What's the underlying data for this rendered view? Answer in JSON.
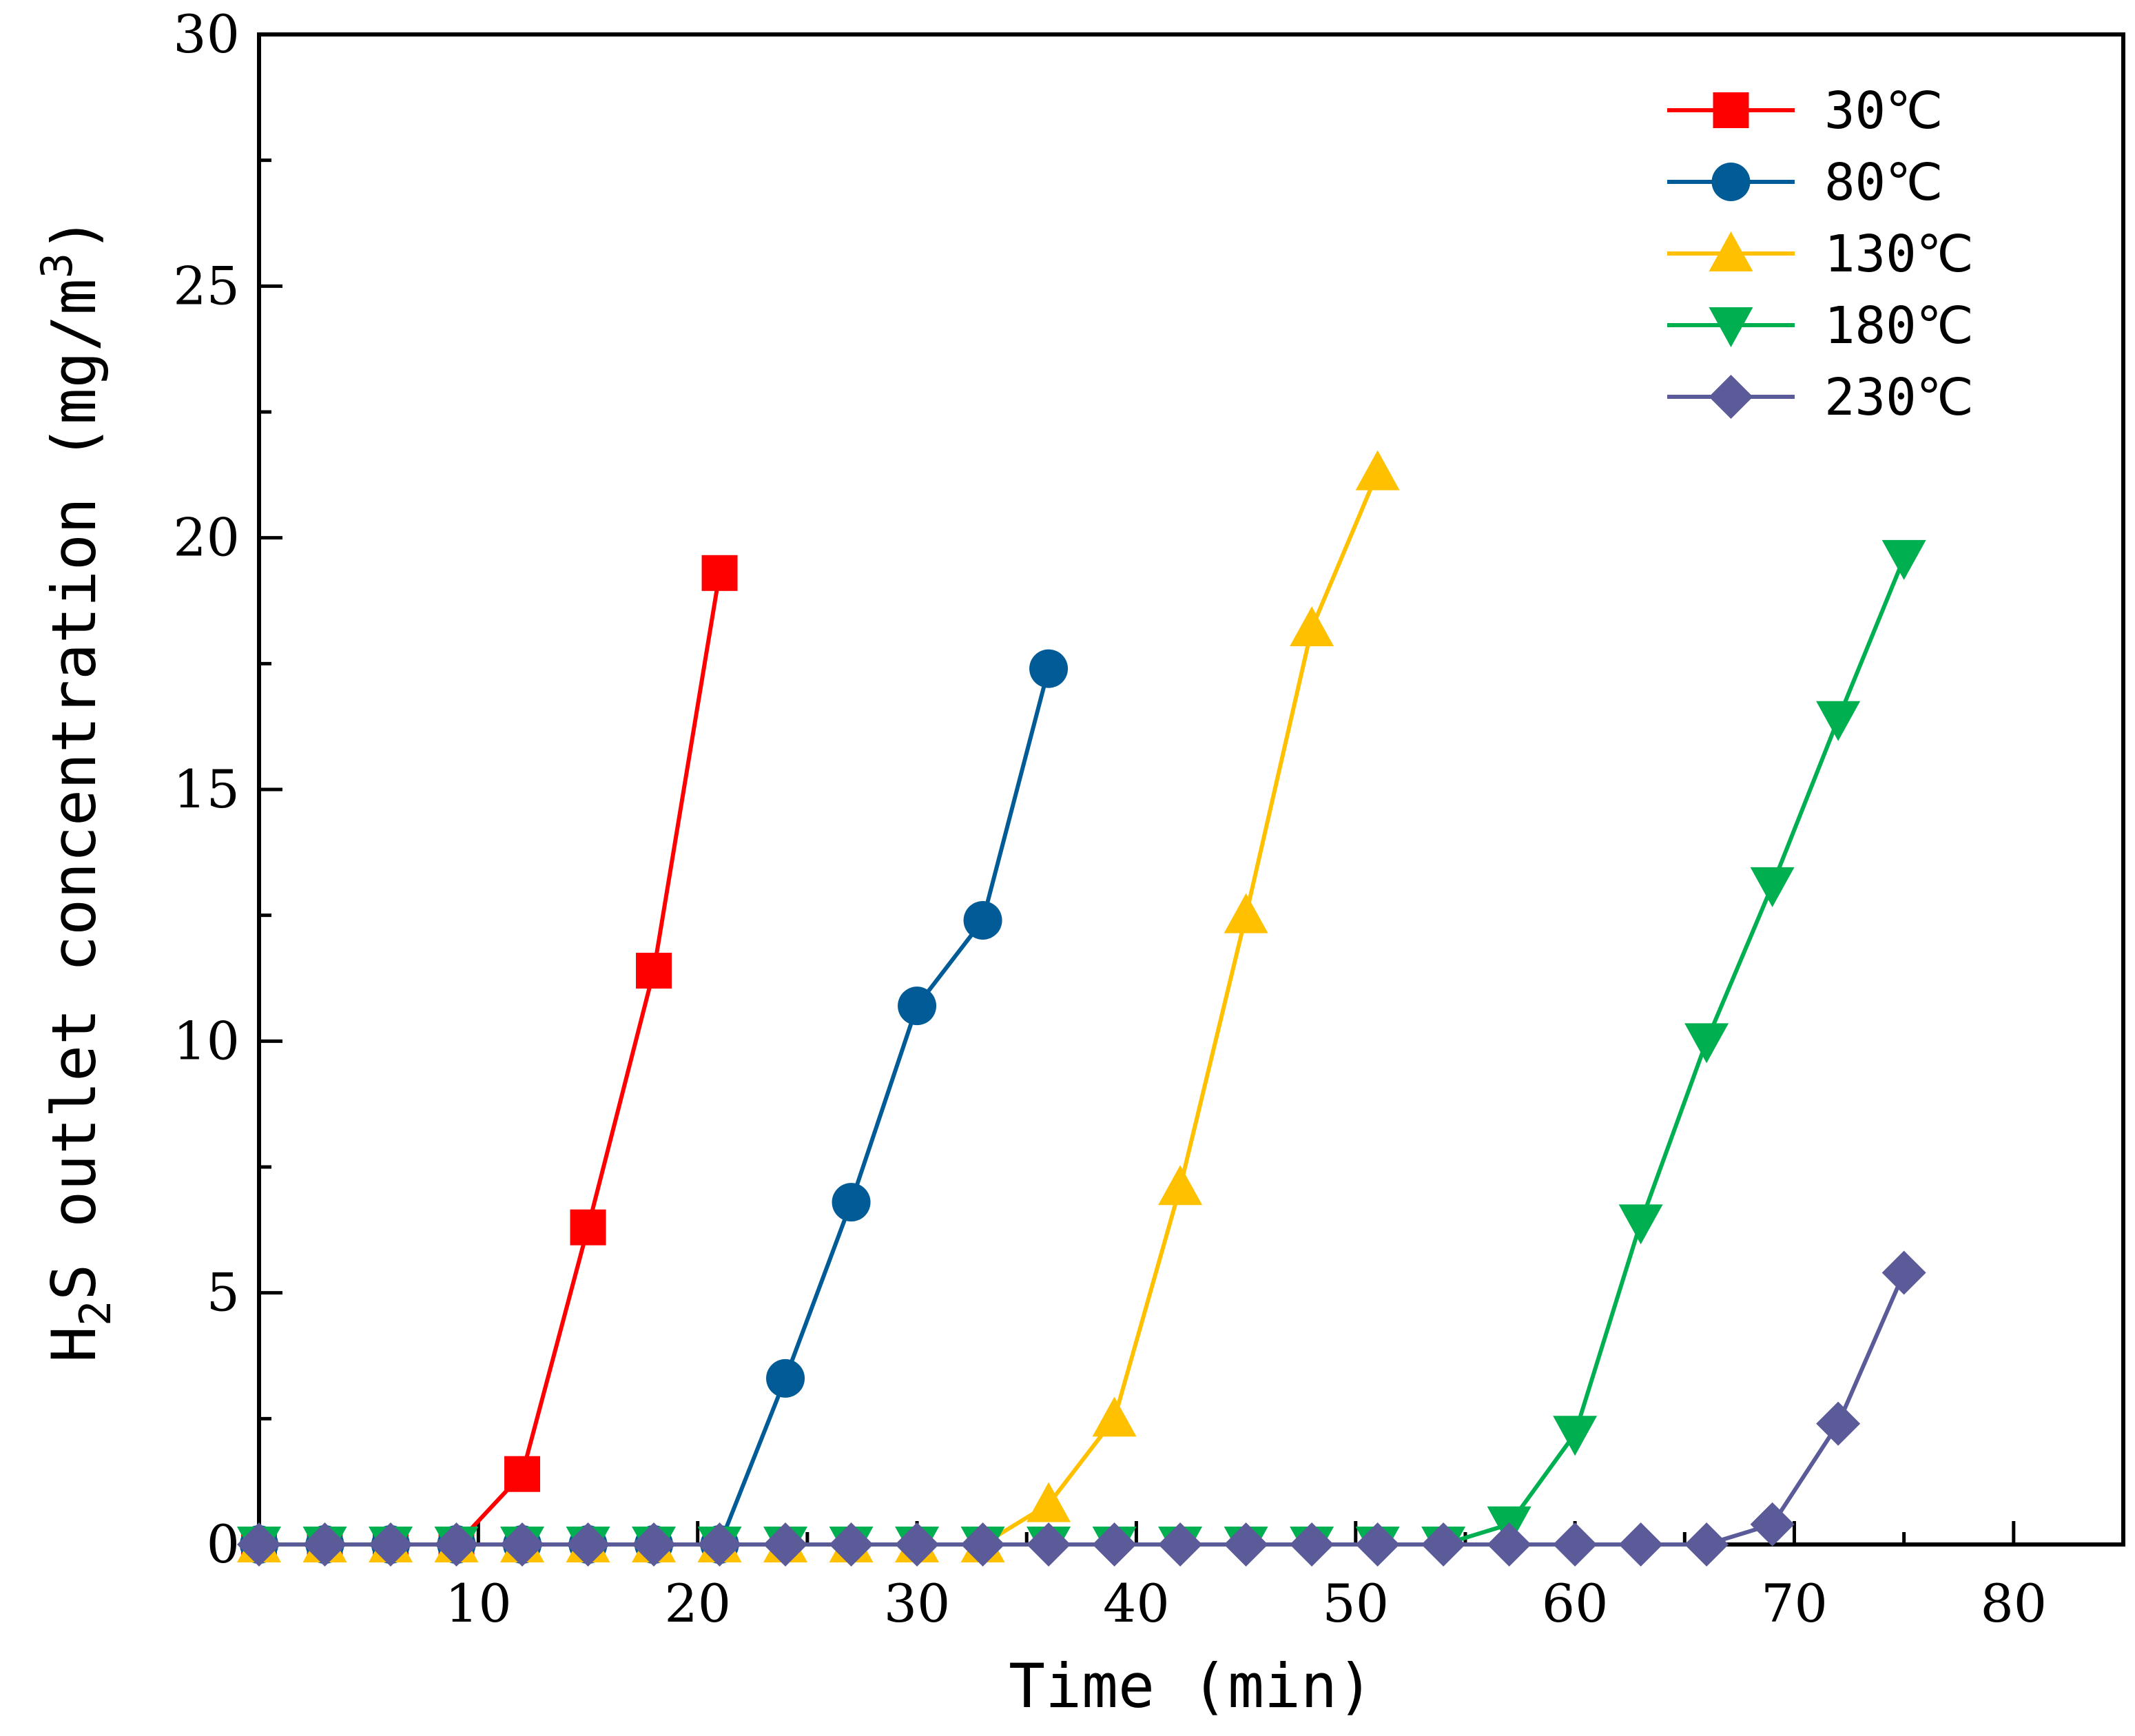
{
  "chart_data": {
    "type": "line",
    "title": "",
    "xlabel": "Time (min)",
    "ylabel": {
      "main": "H",
      "sub": "2",
      "rest": "S outlet concentration (mg/m",
      "sup": "3",
      "close": ")"
    },
    "xlim": [
      0,
      85
    ],
    "ylim": [
      0,
      30
    ],
    "x_ticks": [
      "10",
      "20",
      "30",
      "40",
      "50",
      "60",
      "70",
      "80"
    ],
    "y_ticks": [
      "0",
      "5",
      "10",
      "15",
      "20",
      "25",
      "30"
    ],
    "legend_position": "top-right",
    "series": [
      {
        "name": "30℃",
        "color": "#ff0000",
        "marker": "square",
        "x": [
          0,
          3,
          6,
          9,
          12,
          15,
          18,
          21
        ],
        "values": [
          0,
          0,
          0,
          0,
          1.4,
          6.3,
          11.4,
          19.3
        ]
      },
      {
        "name": "80℃",
        "color": "#005b96",
        "marker": "circle",
        "x": [
          0,
          3,
          6,
          9,
          12,
          15,
          18,
          21,
          24,
          27,
          30,
          33,
          36
        ],
        "values": [
          0,
          0,
          0,
          0,
          0,
          0,
          0,
          0,
          3.3,
          6.8,
          10.7,
          12.4,
          17.4
        ]
      },
      {
        "name": "130℃",
        "color": "#ffc000",
        "marker": "triangle-up",
        "x": [
          0,
          3,
          6,
          9,
          12,
          15,
          18,
          21,
          24,
          27,
          30,
          33,
          36,
          39,
          42,
          45,
          48,
          51
        ],
        "values": [
          0,
          0,
          0,
          0,
          0,
          0,
          0,
          0,
          0,
          0,
          0,
          0,
          0.8,
          2.5,
          7.1,
          12.5,
          18.2,
          21.3
        ]
      },
      {
        "name": "180℃",
        "color": "#00b050",
        "marker": "triangle-down",
        "x": [
          0,
          3,
          6,
          9,
          12,
          15,
          18,
          21,
          24,
          27,
          30,
          33,
          36,
          39,
          42,
          45,
          48,
          51,
          54,
          57,
          60,
          63,
          66,
          69,
          72,
          75
        ],
        "values": [
          0,
          0,
          0,
          0,
          0,
          0,
          0,
          0,
          0,
          0,
          0,
          0,
          0,
          0,
          0,
          0,
          0,
          0,
          0,
          0.4,
          2.2,
          6.4,
          10.0,
          13.1,
          16.4,
          19.6
        ]
      },
      {
        "name": "230℃",
        "color": "#5b5b9a",
        "marker": "diamond",
        "x": [
          0,
          3,
          6,
          9,
          12,
          15,
          18,
          21,
          24,
          27,
          30,
          33,
          36,
          39,
          42,
          45,
          48,
          51,
          54,
          57,
          60,
          63,
          66,
          69,
          72,
          75
        ],
        "values": [
          0,
          0,
          0,
          0,
          0,
          0,
          0,
          0,
          0,
          0,
          0,
          0,
          0,
          0,
          0,
          0,
          0,
          0,
          0,
          0,
          0,
          0,
          0,
          0.4,
          2.4,
          5.4
        ]
      }
    ]
  }
}
